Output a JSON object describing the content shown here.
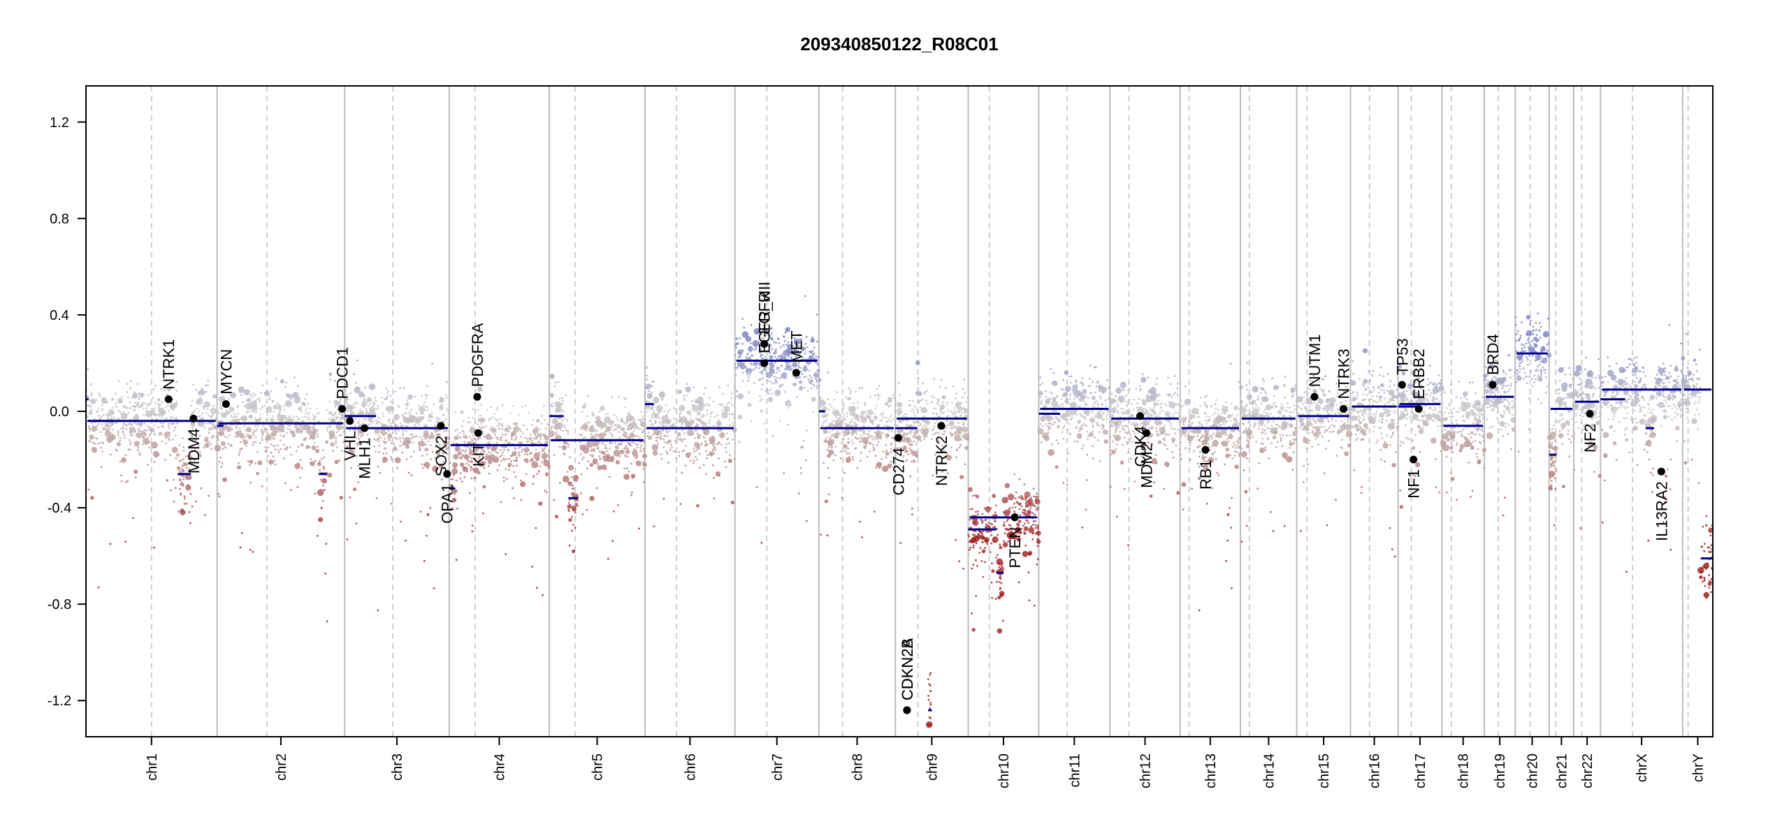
{
  "chart_data": {
    "type": "scatter",
    "title": "209340850122_R08C01",
    "xlabel": "",
    "ylabel": "",
    "ylim": [
      -1.35,
      1.35
    ],
    "yticks": [
      -1.2,
      -0.8,
      -0.4,
      0.0,
      0.4,
      0.8,
      1.2
    ],
    "ytick_labels": [
      "-1.2",
      "-0.8",
      "-0.4",
      "0.0",
      "0.4",
      "0.8",
      "1.2"
    ],
    "colors": {
      "gain": "#7b80c4",
      "neutral": "#c8c8c8",
      "loss": "#9e1b1b",
      "segment": "#00008b",
      "gene_point": "#000000"
    },
    "chromosomes": [
      {
        "name": "chr1",
        "length": 248.9,
        "centromere": 0.5,
        "level": -0.04,
        "extra_segments": [
          [
            0.0,
            0.02,
            0.05
          ],
          [
            0.02,
            0.2,
            -0.04
          ],
          [
            0.7,
            0.8,
            -0.26
          ]
        ]
      },
      {
        "name": "chr2",
        "length": 242.2,
        "centromere": 0.39,
        "level": -0.05,
        "extra_segments": [
          [
            0.0,
            0.05,
            -0.06
          ],
          [
            0.8,
            0.86,
            -0.26
          ]
        ]
      },
      {
        "name": "chr3",
        "length": 198.3,
        "centromere": 0.46,
        "level": -0.07,
        "extra_segments": [
          [
            0.0,
            0.3,
            -0.02
          ]
        ]
      },
      {
        "name": "chr4",
        "length": 190.2,
        "centromere": 0.26,
        "level": -0.14,
        "extra_segments": [
          [
            0.0,
            0.06,
            -0.32
          ],
          [
            0.06,
            0.3,
            -0.14
          ]
        ]
      },
      {
        "name": "chr5",
        "length": 181.5,
        "centromere": 0.27,
        "level": -0.12,
        "extra_segments": [
          [
            0.0,
            0.15,
            -0.02
          ],
          [
            0.2,
            0.3,
            -0.36
          ],
          [
            0.5,
            0.8,
            -0.12
          ]
        ]
      },
      {
        "name": "chr6",
        "length": 170.8,
        "centromere": 0.35,
        "level": -0.07,
        "extra_segments": [
          [
            0.0,
            0.1,
            0.03
          ]
        ]
      },
      {
        "name": "chr7",
        "length": 159.3,
        "centromere": 0.38,
        "level": 0.21,
        "extra_segments": []
      },
      {
        "name": "chr8",
        "length": 145.1,
        "centromere": 0.31,
        "level": -0.07,
        "extra_segments": [
          [
            0.0,
            0.08,
            0.0
          ]
        ]
      },
      {
        "name": "chr9",
        "length": 138.4,
        "centromere": 0.31,
        "level": -0.03,
        "extra_segments": [
          [
            0.0,
            0.3,
            -0.07
          ],
          [
            0.45,
            0.5,
            -1.24
          ]
        ]
      },
      {
        "name": "chr10",
        "length": 133.8,
        "centromere": 0.3,
        "level": -0.44,
        "extra_segments": [
          [
            0.0,
            0.4,
            -0.49
          ],
          [
            0.4,
            0.5,
            -0.67
          ]
        ]
      },
      {
        "name": "chr11",
        "length": 135.1,
        "centromere": 0.4,
        "level": 0.01,
        "extra_segments": [
          [
            0.0,
            0.3,
            -0.01
          ]
        ]
      },
      {
        "name": "chr12",
        "length": 133.3,
        "centromere": 0.27,
        "level": -0.03,
        "extra_segments": []
      },
      {
        "name": "chr13",
        "length": 114.4,
        "centromere": 0.15,
        "level": -0.07,
        "extra_segments": []
      },
      {
        "name": "chr14",
        "length": 107.0,
        "centromere": 0.16,
        "level": -0.03,
        "extra_segments": []
      },
      {
        "name": "chr15",
        "length": 102.0,
        "centromere": 0.19,
        "level": -0.02,
        "extra_segments": []
      },
      {
        "name": "chr16",
        "length": 90.3,
        "centromere": 0.4,
        "level": 0.02,
        "extra_segments": []
      },
      {
        "name": "chr17",
        "length": 83.3,
        "centromere": 0.3,
        "level": 0.03,
        "extra_segments": [
          [
            0.0,
            0.45,
            0.02
          ]
        ]
      },
      {
        "name": "chr18",
        "length": 80.4,
        "centromere": 0.22,
        "level": -0.06,
        "extra_segments": []
      },
      {
        "name": "chr19",
        "length": 58.6,
        "centromere": 0.45,
        "level": 0.06,
        "extra_segments": []
      },
      {
        "name": "chr20",
        "length": 64.4,
        "centromere": 0.44,
        "level": 0.24,
        "extra_segments": []
      },
      {
        "name": "chr21",
        "length": 46.7,
        "centromere": 0.27,
        "level": 0.01,
        "extra_segments": [
          [
            0.0,
            0.3,
            -0.18
          ]
        ]
      },
      {
        "name": "chr22",
        "length": 50.8,
        "centromere": 0.3,
        "level": 0.04,
        "extra_segments": []
      },
      {
        "name": "chrX",
        "length": 156.0,
        "centromere": 0.39,
        "level": 0.09,
        "extra_segments": [
          [
            0.0,
            0.3,
            0.05
          ],
          [
            0.55,
            0.65,
            -0.07
          ]
        ]
      },
      {
        "name": "chrY",
        "length": 57.2,
        "centromere": 0.18,
        "level": 0.09,
        "extra_segments": [
          [
            0.6,
            1.0,
            -0.61
          ]
        ]
      }
    ],
    "genes": [
      {
        "name": "NTRK1",
        "chrom": "chr1",
        "pos": 0.63,
        "value": 0.05,
        "label_side": "up"
      },
      {
        "name": "MDM4",
        "chrom": "chr1",
        "pos": 0.82,
        "value": -0.03,
        "label_side": "down"
      },
      {
        "name": "MYCN",
        "chrom": "chr2",
        "pos": 0.07,
        "value": 0.03,
        "label_side": "up"
      },
      {
        "name": "PDCD1",
        "chrom": "chr2",
        "pos": 0.98,
        "value": 0.01,
        "label_side": "up"
      },
      {
        "name": "VHL",
        "chrom": "chr3",
        "pos": 0.05,
        "value": -0.04,
        "label_side": "down"
      },
      {
        "name": "MLH1",
        "chrom": "chr3",
        "pos": 0.19,
        "value": -0.07,
        "label_side": "down"
      },
      {
        "name": "SOX2",
        "chrom": "chr3",
        "pos": 0.92,
        "value": -0.06,
        "label_side": "down"
      },
      {
        "name": "OPA1",
        "chrom": "chr3",
        "pos": 0.98,
        "value": -0.26,
        "label_side": "down"
      },
      {
        "name": "PDGFRA",
        "chrom": "chr4",
        "pos": 0.28,
        "value": 0.06,
        "label_side": "up"
      },
      {
        "name": "KIT",
        "chrom": "chr4",
        "pos": 0.29,
        "value": -0.09,
        "label_side": "down"
      },
      {
        "name": "EGFR",
        "chrom": "chr7",
        "pos": 0.35,
        "value": 0.28,
        "label_side": "up"
      },
      {
        "name": "EGFR_vIII",
        "chrom": "chr7",
        "pos": 0.35,
        "value": 0.2,
        "label_side": "up"
      },
      {
        "name": "MET",
        "chrom": "chr7",
        "pos": 0.73,
        "value": 0.16,
        "label_side": "up"
      },
      {
        "name": "CD274",
        "chrom": "chr9",
        "pos": 0.04,
        "value": -0.11,
        "label_side": "down"
      },
      {
        "name": "CDKN2A",
        "chrom": "chr9",
        "pos": 0.16,
        "value": -1.24,
        "label_side": "up"
      },
      {
        "name": "CDKN2B",
        "chrom": "chr9",
        "pos": 0.16,
        "value": -1.24,
        "label_side": "up"
      },
      {
        "name": "NTRK2",
        "chrom": "chr9",
        "pos": 0.63,
        "value": -0.06,
        "label_side": "down"
      },
      {
        "name": "PTEN",
        "chrom": "chr10",
        "pos": 0.66,
        "value": -0.44,
        "label_side": "down"
      },
      {
        "name": "CDK4",
        "chrom": "chr12",
        "pos": 0.43,
        "value": -0.02,
        "label_side": "down"
      },
      {
        "name": "MDM2",
        "chrom": "chr12",
        "pos": 0.52,
        "value": -0.09,
        "label_side": "down"
      },
      {
        "name": "RB1",
        "chrom": "chr13",
        "pos": 0.42,
        "value": -0.16,
        "label_side": "down"
      },
      {
        "name": "NUTM1",
        "chrom": "chr15",
        "pos": 0.33,
        "value": 0.06,
        "label_side": "up"
      },
      {
        "name": "NTRK3",
        "chrom": "chr15",
        "pos": 0.87,
        "value": 0.01,
        "label_side": "up"
      },
      {
        "name": "TP53",
        "chrom": "chr17",
        "pos": 0.09,
        "value": 0.11,
        "label_side": "up"
      },
      {
        "name": "ERBB2",
        "chrom": "chr17",
        "pos": 0.47,
        "value": 0.01,
        "label_side": "up"
      },
      {
        "name": "NF1",
        "chrom": "chr17",
        "pos": 0.35,
        "value": -0.2,
        "label_side": "down"
      },
      {
        "name": "BRD4",
        "chrom": "chr19",
        "pos": 0.27,
        "value": 0.11,
        "label_side": "up"
      },
      {
        "name": "NF2",
        "chrom": "chr22",
        "pos": 0.6,
        "value": -0.01,
        "label_side": "down"
      },
      {
        "name": "IL13RA2",
        "chrom": "chrX",
        "pos": 0.74,
        "value": -0.25,
        "label_side": "down"
      }
    ]
  }
}
